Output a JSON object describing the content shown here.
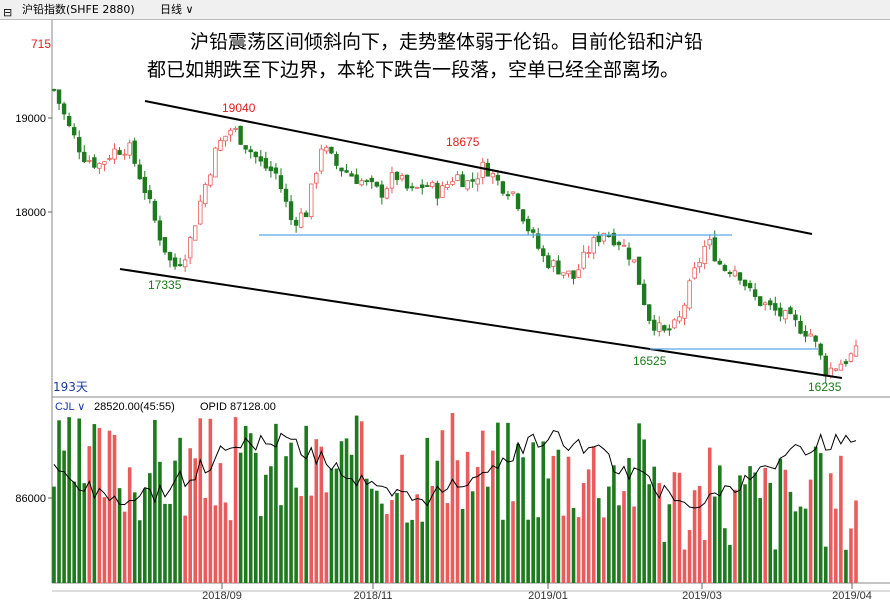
{
  "toolbar": {
    "icon": "chart-window-icon",
    "symbol": "沪铅指数(SHFE 2880)",
    "period": "日线",
    "period_icon": "chevron-down-icon"
  },
  "annotation": {
    "line1": "沪铅震荡区间倾斜向下，走势整体弱于伦铅。目前伦铅和沪铅",
    "line2": "都已如期跌至下边界，本轮下跌告一段落，空单已经全部离场。"
  },
  "price_panel": {
    "y_ticks": [
      "19000",
      "18000"
    ],
    "labels": [
      {
        "text": "715",
        "color": "#e02020"
      },
      {
        "text": "19040",
        "color": "#e02020"
      },
      {
        "text": "18675",
        "color": "#e02020"
      },
      {
        "text": "17335",
        "color": "#1a7a1a"
      },
      {
        "text": "16525",
        "color": "#1a7a1a"
      },
      {
        "text": "16235",
        "color": "#1a7a1a"
      }
    ],
    "days_label": "193天"
  },
  "volume_panel": {
    "indicator": "CJL",
    "value": "28520.00(45:55)",
    "opid": "OPID 87128.00",
    "y_tick": "86000"
  },
  "x_ticks": [
    "2018/09",
    "2018/11",
    "2019/01",
    "2019/03",
    "2019/04"
  ],
  "colors": {
    "up": "#ea5c5c",
    "down": "#1f7a1f",
    "line": "#000000",
    "hline": "#5aa6e6",
    "grid": "#c8c8c8"
  },
  "chart_data": {
    "type": "candlestick",
    "y_ticks": [
      19000,
      18000
    ],
    "approx_close": [
      19300,
      18900,
      18600,
      18500,
      18650,
      18700,
      18300,
      17800,
      17400,
      17600,
      18200,
      18700,
      18900,
      18700,
      18500,
      18400,
      17900,
      18000,
      18700,
      18500,
      18400,
      18300,
      18200,
      18400,
      18200,
      18300,
      18200,
      18400,
      18300,
      18500,
      18300,
      18200,
      17800,
      17500,
      17400,
      17300,
      17600,
      17800,
      17700,
      17500,
      16900,
      16700,
      16800,
      17300,
      17700,
      17400,
      17400,
      17100,
      17000,
      16900,
      16800,
      16700,
      16300,
      16400,
      16500
    ],
    "key_levels": {
      "high_1": 19040,
      "high_2": 18675,
      "low_1": 17335,
      "low_2": 16525,
      "low_3": 16235
    },
    "volume_y_tick": 86000
  }
}
